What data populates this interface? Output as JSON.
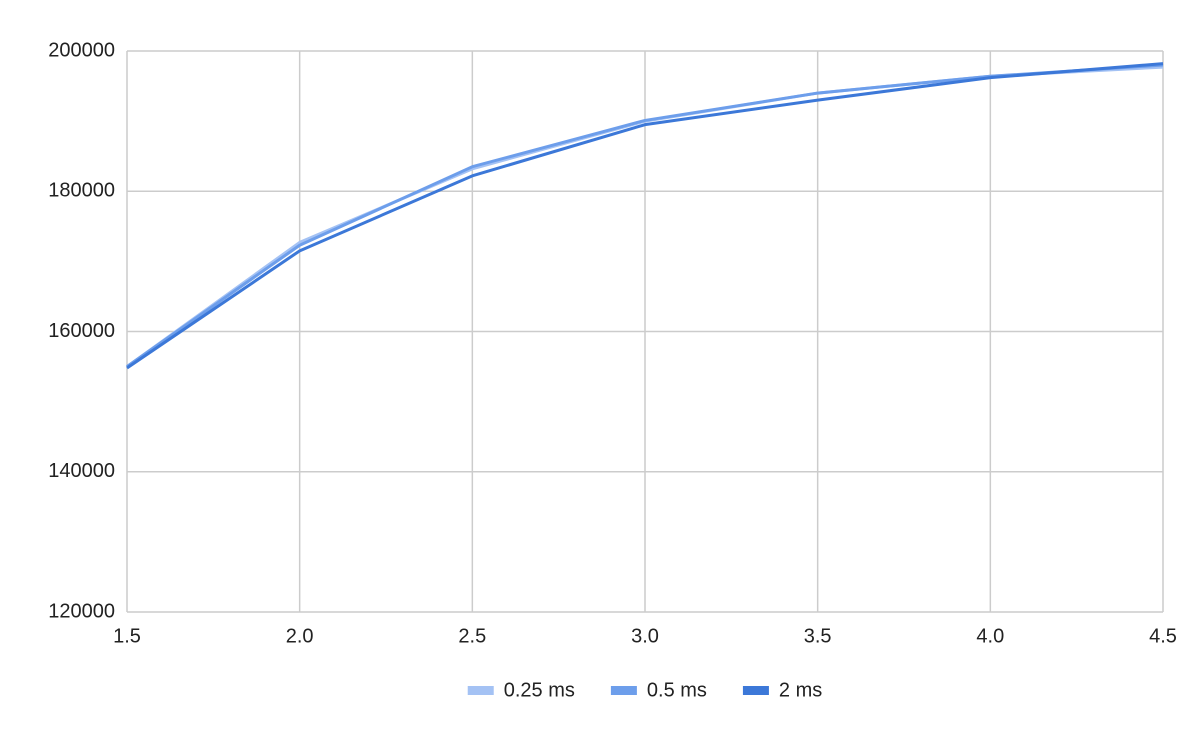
{
  "chart_data": {
    "type": "line",
    "x": [
      1.5,
      2.0,
      2.5,
      3.0,
      3.5,
      4.0,
      4.5
    ],
    "series": [
      {
        "name": "0.25 ms",
        "color": "#a4c2f4",
        "values": [
          155000,
          172700,
          183200,
          190000,
          194000,
          196400,
          197700
        ]
      },
      {
        "name": "0.5 ms",
        "color": "#6d9eeb",
        "values": [
          155000,
          172300,
          183500,
          190100,
          194000,
          196400,
          198000
        ]
      },
      {
        "name": "2 ms",
        "color": "#3c78d8",
        "values": [
          154800,
          171500,
          182200,
          189500,
          193000,
          196200,
          198200
        ]
      }
    ],
    "xlim": [
      1.5,
      4.5
    ],
    "xticks": [
      1.5,
      {
        "value": 2,
        "label": "2.0"
      },
      2.5,
      {
        "value": 3,
        "label": "3.0"
      },
      3.5,
      {
        "value": 4,
        "label": "4.0"
      },
      4.5
    ],
    "ylim": [
      120000,
      200000
    ],
    "yticks": [
      120000,
      140000,
      160000,
      180000,
      200000
    ],
    "grid": true,
    "legend": "bottom"
  }
}
